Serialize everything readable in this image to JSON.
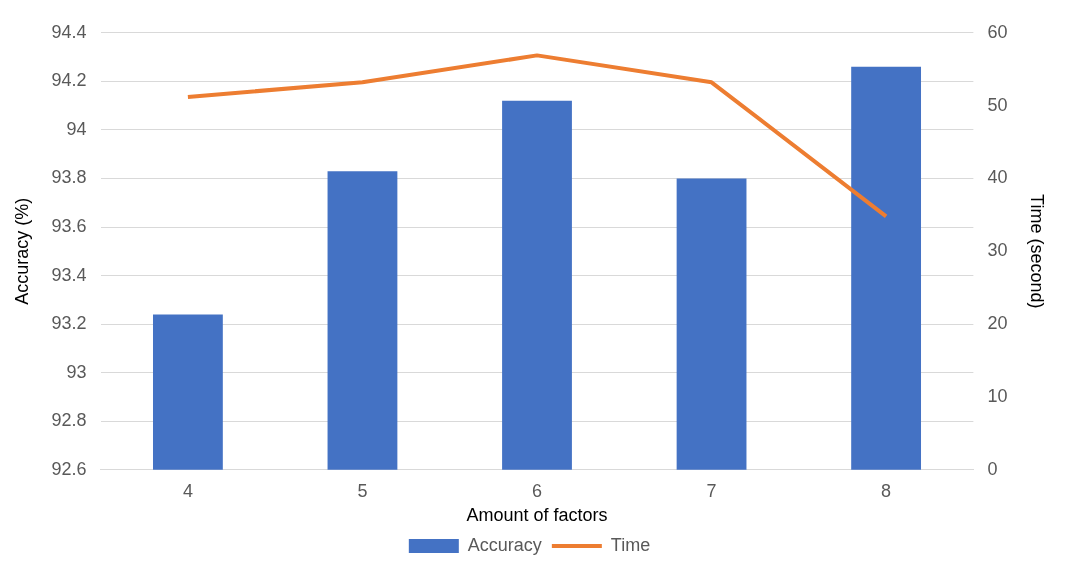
{
  "chart_data": {
    "type": "bar",
    "xlabel": "Amount of factors",
    "ylabel": "Accuracy (%)",
    "y2label": "Time (second)",
    "categories": [
      "4",
      "5",
      "6",
      "7",
      "8"
    ],
    "series": [
      {
        "name": "Accuracy",
        "color": "#4472c4",
        "values": [
          93.24,
          93.83,
          94.12,
          93.8,
          94.26
        ]
      },
      {
        "name": "Time",
        "type": "line",
        "axis": "y2",
        "color": "#ed7d31",
        "values": [
          51.2,
          53.2,
          56.9,
          53.2,
          34.8
        ]
      }
    ],
    "ylim": [
      92.6,
      94.4
    ],
    "yticks": [
      92.6,
      92.8,
      93,
      93.2,
      93.4,
      93.6,
      93.8,
      94,
      94.2,
      94.4
    ],
    "y2lim": [
      0,
      60
    ],
    "y2ticks": [
      0,
      10,
      20,
      30,
      40,
      50,
      60
    ],
    "grid": "y",
    "legend": "bottom"
  }
}
